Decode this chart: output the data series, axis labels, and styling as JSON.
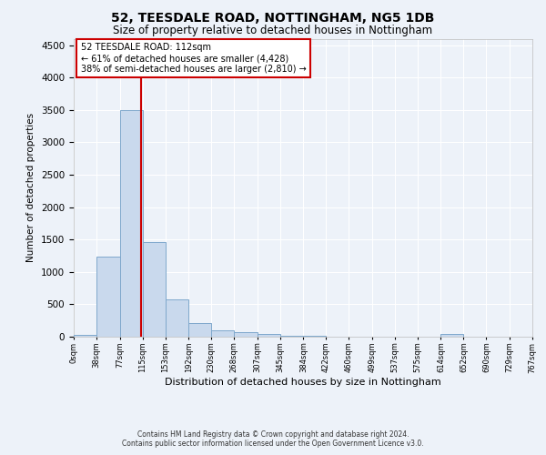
{
  "title1": "52, TEESDALE ROAD, NOTTINGHAM, NG5 1DB",
  "title2": "Size of property relative to detached houses in Nottingham",
  "xlabel": "Distribution of detached houses by size in Nottingham",
  "ylabel": "Number of detached properties",
  "footer1": "Contains HM Land Registry data © Crown copyright and database right 2024.",
  "footer2": "Contains public sector information licensed under the Open Government Licence v3.0.",
  "annotation_title": "52 TEESDALE ROAD: 112sqm",
  "annotation_line1": "← 61% of detached houses are smaller (4,428)",
  "annotation_line2": "38% of semi-detached houses are larger (2,810) →",
  "bar_color": "#c9d9ed",
  "bar_edge_color": "#7fa8cc",
  "vline_color": "#cc0000",
  "vline_x": 112,
  "bins": [
    0,
    38,
    77,
    115,
    153,
    192,
    230,
    268,
    307,
    345,
    384,
    422,
    460,
    499,
    537,
    575,
    614,
    652,
    690,
    729,
    767
  ],
  "bin_labels": [
    "0sqm",
    "38sqm",
    "77sqm",
    "115sqm",
    "153sqm",
    "192sqm",
    "230sqm",
    "268sqm",
    "307sqm",
    "345sqm",
    "384sqm",
    "422sqm",
    "460sqm",
    "499sqm",
    "537sqm",
    "575sqm",
    "614sqm",
    "652sqm",
    "690sqm",
    "729sqm",
    "767sqm"
  ],
  "counts": [
    30,
    1230,
    3500,
    1460,
    570,
    215,
    95,
    70,
    40,
    20,
    10,
    5,
    3,
    2,
    0,
    0,
    45,
    0,
    0,
    0
  ],
  "ylim": [
    0,
    4600
  ],
  "yticks": [
    0,
    500,
    1000,
    1500,
    2000,
    2500,
    3000,
    3500,
    4000,
    4500
  ],
  "background_color": "#edf2f9",
  "plot_bg_color": "#edf2f9",
  "grid_color": "#ffffff",
  "annotation_box_edge": "#cc0000"
}
